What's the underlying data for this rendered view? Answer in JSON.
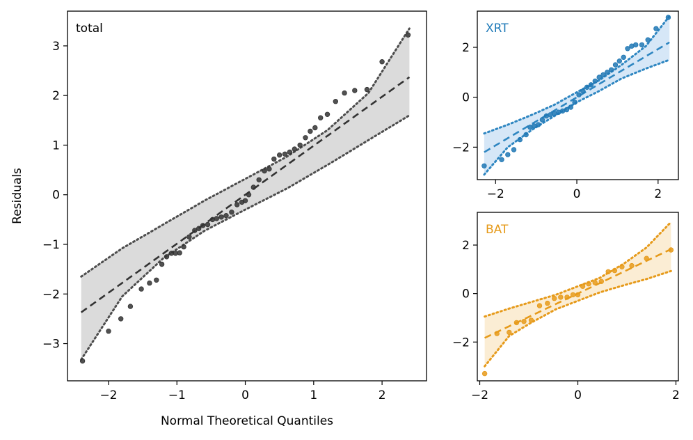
{
  "chart_data": [
    {
      "type": "scatter",
      "subtype": "qq-plot",
      "title": "total",
      "xlabel": "Normal Theoretical Quantiles",
      "ylabel": "Residuals",
      "xlim": [
        -2.6,
        2.65
      ],
      "ylim": [
        -3.75,
        3.7
      ],
      "xticks": [
        -2,
        -1,
        0,
        1,
        2
      ],
      "yticks": [
        -3,
        -2,
        -1,
        0,
        1,
        2,
        3
      ],
      "colors": {
        "points": "#333333",
        "line": "#333333",
        "band": "#d9d9d9",
        "bound": "#4d4d4d",
        "title": "#000000"
      },
      "reference_line": {
        "x": [
          -2.4,
          2.4
        ],
        "y": [
          -2.37,
          2.37
        ]
      },
      "band": {
        "x": [
          -2.4,
          -1.8,
          -1.2,
          -0.6,
          0,
          0.6,
          1.2,
          1.8,
          2.4
        ],
        "upper": [
          -1.65,
          -1.08,
          -0.6,
          -0.12,
          0.32,
          0.76,
          1.3,
          2.05,
          3.35
        ],
        "lower": [
          -3.32,
          -2.05,
          -1.28,
          -0.73,
          -0.3,
          0.12,
          0.6,
          1.1,
          1.6
        ]
      },
      "points": {
        "x": [
          -2.38,
          -2.0,
          -1.82,
          -1.68,
          -1.52,
          -1.4,
          -1.3,
          -1.22,
          -1.15,
          -1.08,
          -1.02,
          -0.96,
          -0.9,
          -0.82,
          -0.74,
          -0.68,
          -0.62,
          -0.55,
          -0.48,
          -0.42,
          -0.35,
          -0.28,
          -0.2,
          -0.12,
          -0.05,
          0.0,
          0.05,
          0.12,
          0.2,
          0.28,
          0.35,
          0.42,
          0.5,
          0.58,
          0.65,
          0.72,
          0.8,
          0.88,
          0.95,
          1.02,
          1.1,
          1.2,
          1.32,
          1.45,
          1.6,
          1.78,
          2.0,
          2.38
        ],
        "y": [
          -3.35,
          -2.75,
          -2.5,
          -2.25,
          -1.9,
          -1.78,
          -1.72,
          -1.4,
          -1.25,
          -1.18,
          -1.18,
          -1.17,
          -1.05,
          -0.85,
          -0.72,
          -0.68,
          -0.62,
          -0.6,
          -0.5,
          -0.48,
          -0.45,
          -0.42,
          -0.35,
          -0.2,
          -0.15,
          -0.12,
          0.0,
          0.15,
          0.3,
          0.48,
          0.52,
          0.72,
          0.8,
          0.82,
          0.86,
          0.92,
          1.0,
          1.15,
          1.28,
          1.35,
          1.55,
          1.62,
          1.88,
          2.05,
          2.1,
          2.12,
          2.68,
          3.22
        ]
      }
    },
    {
      "type": "scatter",
      "subtype": "qq-plot",
      "title": "XRT",
      "xlabel": "",
      "ylabel": "",
      "xlim": [
        -2.45,
        2.5
      ],
      "ylim": [
        -3.3,
        3.45
      ],
      "xticks": [
        -2,
        0,
        2
      ],
      "yticks": [
        -2,
        0,
        2
      ],
      "colors": {
        "points": "#1f77b4",
        "line": "#2e86c1",
        "band": "#d4e6f7",
        "bound": "#2e86c1",
        "title": "#1f7ab8"
      },
      "reference_line": {
        "x": [
          -2.28,
          2.28
        ],
        "y": [
          -2.2,
          2.2
        ]
      },
      "band": {
        "x": [
          -2.28,
          -1.7,
          -1.1,
          -0.55,
          0,
          0.55,
          1.1,
          1.7,
          2.28
        ],
        "upper": [
          -1.45,
          -1.1,
          -0.7,
          -0.3,
          0.2,
          0.68,
          1.3,
          2.05,
          3.25
        ],
        "lower": [
          -3.1,
          -2.0,
          -1.3,
          -0.75,
          -0.2,
          0.25,
          0.75,
          1.15,
          1.5
        ]
      },
      "points": {
        "x": [
          -2.28,
          -1.85,
          -1.7,
          -1.55,
          -1.4,
          -1.25,
          -1.15,
          -1.05,
          -0.95,
          -0.85,
          -0.75,
          -0.65,
          -0.55,
          -0.45,
          -0.35,
          -0.25,
          -0.15,
          -0.05,
          0.05,
          0.15,
          0.25,
          0.35,
          0.45,
          0.55,
          0.65,
          0.75,
          0.85,
          0.95,
          1.05,
          1.15,
          1.25,
          1.35,
          1.45,
          1.6,
          1.75,
          1.95,
          2.25
        ],
        "y": [
          -2.75,
          -2.5,
          -2.3,
          -2.1,
          -1.7,
          -1.5,
          -1.2,
          -1.15,
          -1.1,
          -0.9,
          -0.75,
          -0.7,
          -0.65,
          -0.6,
          -0.55,
          -0.5,
          -0.4,
          -0.2,
          0.1,
          0.25,
          0.4,
          0.5,
          0.65,
          0.8,
          0.9,
          1.0,
          1.1,
          1.3,
          1.45,
          1.6,
          1.95,
          2.05,
          2.1,
          2.1,
          2.3,
          2.75,
          3.2
        ]
      }
    },
    {
      "type": "scatter",
      "subtype": "qq-plot",
      "title": "BAT",
      "xlabel": "",
      "ylabel": "",
      "xlim": [
        -2.05,
        2.05
      ],
      "ylim": [
        -3.6,
        3.35
      ],
      "xticks": [
        -2,
        0,
        2
      ],
      "yticks": [
        -2,
        0,
        2
      ],
      "colors": {
        "points": "#e69a1a",
        "line": "#e69a1a",
        "band": "#fbecd2",
        "bound": "#e69a1a",
        "title": "#e69a1a"
      },
      "reference_line": {
        "x": [
          -1.9,
          1.9
        ],
        "y": [
          -1.83,
          1.83
        ]
      },
      "band": {
        "x": [
          -1.9,
          -1.4,
          -0.95,
          -0.45,
          0,
          0.45,
          0.95,
          1.4,
          1.9
        ],
        "upper": [
          -0.95,
          -0.62,
          -0.35,
          -0.05,
          0.3,
          0.65,
          1.25,
          1.9,
          2.95
        ],
        "lower": [
          -3.0,
          -1.75,
          -1.2,
          -0.65,
          -0.3,
          0.05,
          0.35,
          0.6,
          0.93
        ]
      },
      "points": {
        "x": [
          -1.9,
          -1.65,
          -1.4,
          -1.25,
          -1.1,
          -0.95,
          -0.78,
          -0.62,
          -0.48,
          -0.35,
          -0.22,
          -0.1,
          0.0,
          0.1,
          0.22,
          0.35,
          0.48,
          0.62,
          0.75,
          0.9,
          1.1,
          1.4,
          1.9
        ],
        "y": [
          -3.3,
          -1.65,
          -1.6,
          -1.2,
          -1.15,
          -1.1,
          -0.5,
          -0.4,
          -0.2,
          -0.15,
          -0.15,
          -0.05,
          -0.05,
          0.3,
          0.4,
          0.45,
          0.5,
          0.9,
          0.95,
          1.1,
          1.15,
          1.45,
          1.8
        ]
      }
    }
  ]
}
